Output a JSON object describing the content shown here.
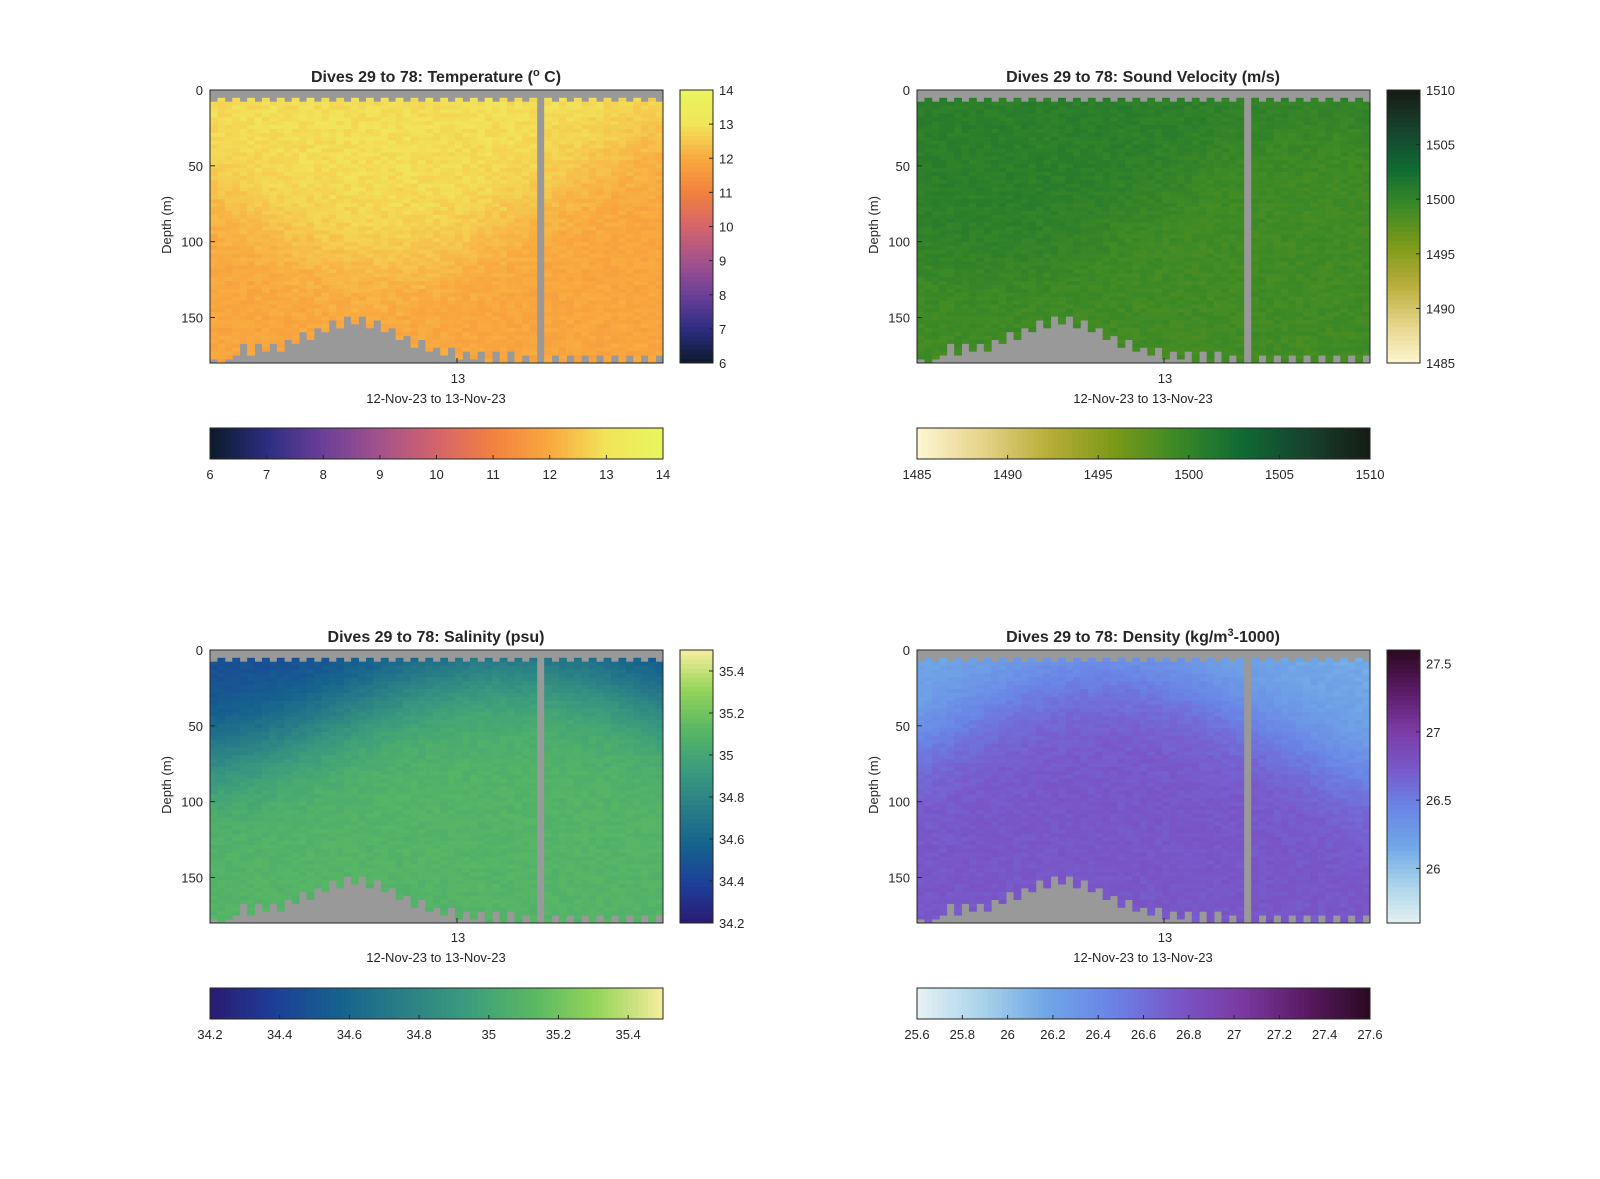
{
  "chart_data": [
    {
      "type": "heatmap",
      "title": "Dives 29 to 78: Temperature (",
      "title_sup": "o",
      "title_end": " C)",
      "ylabel": "Depth (m)",
      "xtick": "13",
      "xlabel": "12-Nov-23 to 13-Nov-23",
      "ylim": [
        0,
        180
      ],
      "y_reversed": true,
      "ytick_labels": [
        "0",
        "50",
        "100",
        "150"
      ],
      "ytick_values": [
        0,
        50,
        100,
        150
      ],
      "clim": [
        6,
        14
      ],
      "colorbar_ticks": [
        6,
        7,
        8,
        9,
        10,
        11,
        12,
        13,
        14
      ],
      "colorbar_tick_labels": [
        "6",
        "7",
        "8",
        "9",
        "10",
        "11",
        "12",
        "13",
        "14"
      ],
      "colormap": [
        "#0b1a2a",
        "#2c2d80",
        "#6b3f98",
        "#a3528c",
        "#d4646a",
        "#f2813f",
        "#f9a93f",
        "#f2e45a",
        "#e8f55e"
      ],
      "shallow_value": 12.9,
      "deep_value": 11.9,
      "mixed_depth": 95
    },
    {
      "type": "heatmap",
      "title": "Dives 29 to 78: Sound Velocity (m/s)",
      "ylabel": "Depth (m)",
      "xtick": "13",
      "xlabel": "12-Nov-23 to 13-Nov-23",
      "ylim": [
        0,
        180
      ],
      "y_reversed": true,
      "ytick_labels": [
        "0",
        "50",
        "100",
        "150"
      ],
      "ytick_values": [
        0,
        50,
        100,
        150
      ],
      "clim": [
        1485,
        1510
      ],
      "colorbar_ticks": [
        1485,
        1490,
        1495,
        1500,
        1505,
        1510
      ],
      "colorbar_tick_labels": [
        "1485",
        "1490",
        "1495",
        "1500",
        "1505",
        "1510"
      ],
      "colormap": [
        "#fdf6d3",
        "#e6d48a",
        "#b9ae3a",
        "#7e9a18",
        "#3c8a26",
        "#0f6b33",
        "#17432e",
        "#161b14"
      ],
      "shallow_value": 1500.6,
      "deep_value": 1499.0,
      "mixed_depth": 100
    },
    {
      "type": "heatmap",
      "title": "Dives 29 to 78: Salinity (psu)",
      "ylabel": "Depth (m)",
      "xtick": "13",
      "xlabel": "12-Nov-23 to 13-Nov-23",
      "ylim": [
        0,
        180
      ],
      "y_reversed": true,
      "ytick_labels": [
        "0",
        "50",
        "100",
        "150"
      ],
      "ytick_values": [
        0,
        50,
        100,
        150
      ],
      "clim": [
        34.2,
        35.5
      ],
      "colorbar_ticks": [
        34.2,
        34.4,
        34.6,
        34.8,
        35,
        35.2,
        35.4
      ],
      "colorbar_tick_labels": [
        "34.2",
        "34.4",
        "34.6",
        "34.8",
        "35",
        "35.2",
        "35.4"
      ],
      "colormap": [
        "#2b1a72",
        "#1d3f98",
        "#15628e",
        "#2a7f86",
        "#3c9d7c",
        "#59b863",
        "#96d55a",
        "#f6ee9e"
      ],
      "shallow_value": 34.45,
      "deep_value": 35.1,
      "mixed_depth": 60
    },
    {
      "type": "heatmap",
      "title": "Dives 29 to 78: Density (kg/m",
      "title_sup": "3",
      "title_end": "-1000)",
      "ylabel": "Depth (m)",
      "xtick": "13",
      "xlabel": "12-Nov-23 to 13-Nov-23",
      "ylim": [
        0,
        180
      ],
      "y_reversed": true,
      "ytick_labels": [
        "0",
        "50",
        "100",
        "150"
      ],
      "ytick_values": [
        0,
        50,
        100,
        150
      ],
      "clim": [
        25.6,
        27.6
      ],
      "colorbar_ticks": [
        25.6,
        25.8,
        26,
        26.2,
        26.4,
        26.6,
        26.8,
        27,
        27.2,
        27.4,
        27.6
      ],
      "colorbar_tick_labels": [
        "25.6",
        "25.8",
        "26",
        "26.2",
        "26.4",
        "26.6",
        "26.8",
        "27",
        "27.2",
        "27.4",
        "27.6"
      ],
      "side_colorbar_ticks": [
        26,
        26.5,
        27,
        27.5
      ],
      "side_colorbar_tick_labels": [
        "26",
        "26.5",
        "27",
        "27.5"
      ],
      "colormap": [
        "#e6f1f3",
        "#a9d3ea",
        "#6fa6e6",
        "#6a84e6",
        "#7957c9",
        "#7a3aa2",
        "#5a1a64",
        "#2a0a1f"
      ],
      "shallow_value": 26.15,
      "deep_value": 26.75,
      "mixed_depth": 80
    }
  ],
  "colors": {
    "no_data": "#999999",
    "axis": "#262626"
  }
}
